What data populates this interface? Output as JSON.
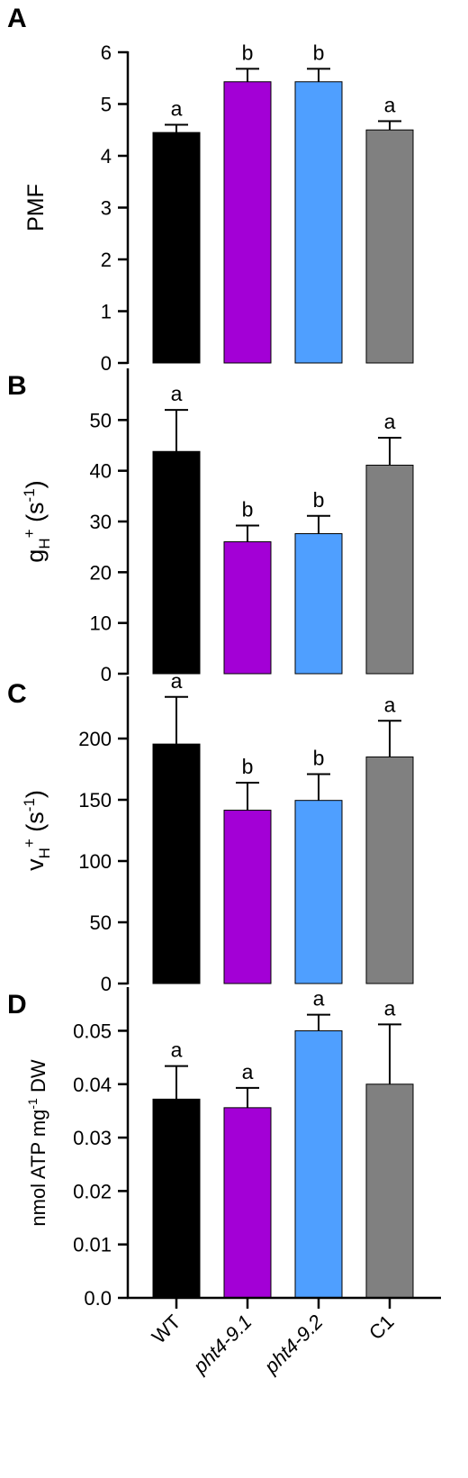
{
  "categories": [
    "WT",
    "pht4-9.1",
    "pht4-9.2",
    "C1"
  ],
  "category_italic": [
    false,
    true,
    true,
    false
  ],
  "colors": {
    "bars": [
      "#000000",
      "#a300d6",
      "#4f9fff",
      "#808080"
    ],
    "axis": "#000000"
  },
  "chart_data": [
    {
      "panel": "A",
      "type": "bar",
      "categories": [
        "WT",
        "pht4-9.1",
        "pht4-9.2",
        "C1"
      ],
      "values": [
        4.45,
        5.43,
        5.43,
        4.5
      ],
      "errors": [
        0.15,
        0.25,
        0.25,
        0.17
      ],
      "significance": [
        "a",
        "b",
        "b",
        "a"
      ],
      "ylabel": "PMF",
      "ylim": [
        0,
        6
      ],
      "yticks": [
        0,
        1,
        2,
        3,
        4,
        5,
        6
      ],
      "ytick_labels": [
        "0",
        "1",
        "2",
        "3",
        "4",
        "5",
        "6"
      ],
      "grid": false
    },
    {
      "panel": "B",
      "type": "bar",
      "categories": [
        "WT",
        "pht4-9.1",
        "pht4-9.2",
        "C1"
      ],
      "values": [
        43.8,
        26.0,
        27.6,
        41.1
      ],
      "errors": [
        8.2,
        3.2,
        3.5,
        5.4
      ],
      "significance": [
        "a",
        "b",
        "b",
        "a"
      ],
      "ylabel": {
        "main": "g",
        "sub": "H",
        "sup_after_sub": "+",
        "rest": " (s",
        "sup_end": "-1",
        "close": ")"
      },
      "ylim": [
        0,
        60
      ],
      "yticks": [
        0,
        10,
        20,
        30,
        40,
        50
      ],
      "ytick_labels": [
        "0",
        "10",
        "20",
        "30",
        "40",
        "50"
      ],
      "grid": false
    },
    {
      "panel": "C",
      "type": "bar",
      "categories": [
        "WT",
        "pht4-9.1",
        "pht4-9.2",
        "C1"
      ],
      "values": [
        195.5,
        141.5,
        149.5,
        185.0
      ],
      "errors": [
        38.5,
        22.5,
        21.5,
        29.5
      ],
      "significance": [
        "a",
        "b",
        "b",
        "a"
      ],
      "ylabel": {
        "main": "v",
        "sub": "H",
        "sup_after_sub": "+",
        "rest": " (s",
        "sup_end": "-1",
        "close": ")"
      },
      "ylim": [
        0,
        250
      ],
      "yticks": [
        0,
        50,
        100,
        150,
        200
      ],
      "ytick_labels": [
        "0",
        "50",
        "100",
        "150",
        "200"
      ],
      "grid": false
    },
    {
      "panel": "D",
      "type": "bar",
      "categories": [
        "WT",
        "pht4-9.1",
        "pht4-9.2",
        "C1"
      ],
      "values": [
        0.0372,
        0.0356,
        0.05,
        0.04
      ],
      "errors": [
        0.0062,
        0.0037,
        0.003,
        0.0112
      ],
      "significance": [
        "a",
        "a",
        "a",
        "a"
      ],
      "ylabel": {
        "main": "nmol ATP mg",
        "sup": "-1",
        "rest": " DW"
      },
      "ylim": [
        0,
        0.058
      ],
      "yticks": [
        0,
        0.01,
        0.02,
        0.03,
        0.04,
        0.05
      ],
      "ytick_labels": [
        "0.0",
        "0.01",
        "0.02",
        "0.03",
        "0.04",
        "0.05"
      ],
      "grid": false
    }
  ]
}
